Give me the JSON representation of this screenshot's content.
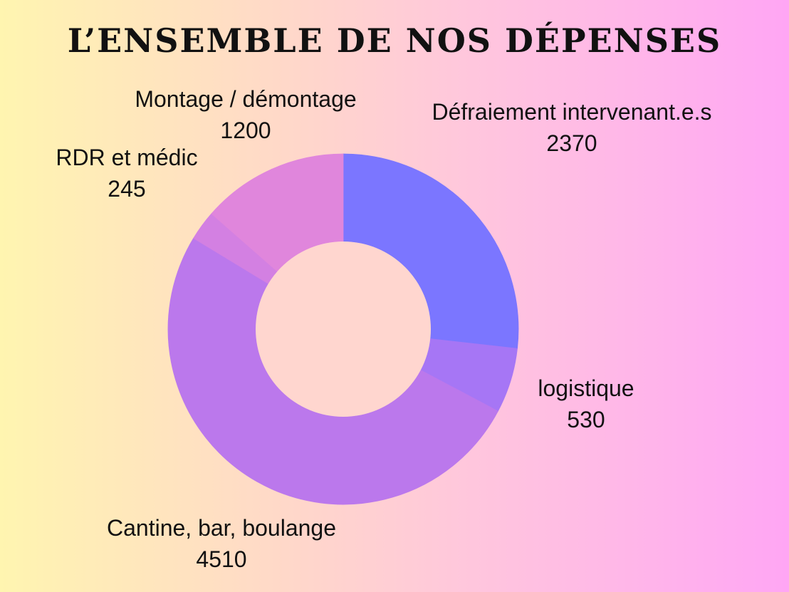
{
  "chart_data": {
    "type": "pie",
    "title": "L’ENSEMBLE DE NOS DÉPENSES",
    "donut": true,
    "slices": [
      {
        "label": "Défraiement intervenant.e.s",
        "value": 2370,
        "color": "#7b76ff"
      },
      {
        "label": "logistique",
        "value": 530,
        "color": "#a676f5"
      },
      {
        "label": "Cantine, bar, boulange",
        "value": 4510,
        "color": "#bb78ec"
      },
      {
        "label": "RDR et médic",
        "value": 245,
        "color": "#d380e2"
      },
      {
        "label": "Montage / démontage",
        "value": 1200,
        "color": "#e086dc"
      }
    ],
    "hole_color": "#ffd6cf"
  }
}
